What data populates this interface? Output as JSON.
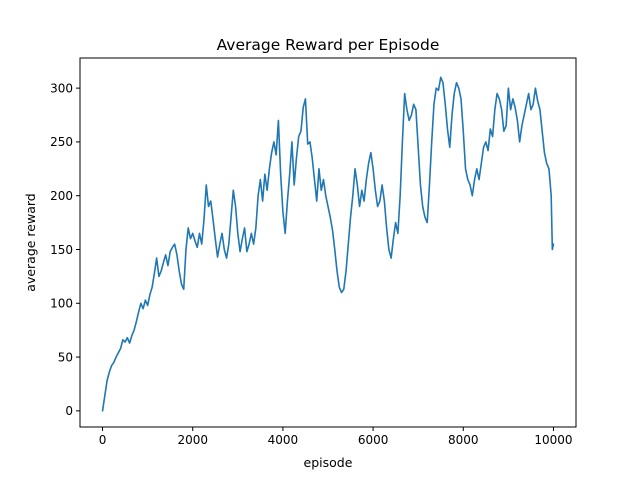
{
  "chart_data": {
    "type": "line",
    "title": "Average Reward per Episode",
    "xlabel": "episode",
    "ylabel": "average reward",
    "xlim": [
      -500,
      10500
    ],
    "ylim": [
      -15,
      328
    ],
    "xticks": [
      0,
      2000,
      4000,
      6000,
      8000,
      10000
    ],
    "yticks": [
      0,
      50,
      100,
      150,
      200,
      250,
      300
    ],
    "grid": false,
    "legend": "none",
    "line_color": "#1f77b4",
    "series": [
      {
        "values": [
          [
            0,
            0
          ],
          [
            50,
            14
          ],
          [
            100,
            28
          ],
          [
            150,
            36
          ],
          [
            200,
            42
          ],
          [
            250,
            45
          ],
          [
            300,
            50
          ],
          [
            400,
            58
          ],
          [
            450,
            66
          ],
          [
            500,
            64
          ],
          [
            550,
            68
          ],
          [
            600,
            63
          ],
          [
            650,
            70
          ],
          [
            700,
            75
          ],
          [
            750,
            83
          ],
          [
            800,
            92
          ],
          [
            850,
            100
          ],
          [
            900,
            95
          ],
          [
            950,
            103
          ],
          [
            1000,
            98
          ],
          [
            1050,
            108
          ],
          [
            1100,
            115
          ],
          [
            1150,
            128
          ],
          [
            1200,
            142
          ],
          [
            1250,
            125
          ],
          [
            1300,
            130
          ],
          [
            1350,
            138
          ],
          [
            1400,
            145
          ],
          [
            1450,
            135
          ],
          [
            1500,
            148
          ],
          [
            1550,
            152
          ],
          [
            1600,
            155
          ],
          [
            1650,
            145
          ],
          [
            1700,
            130
          ],
          [
            1750,
            118
          ],
          [
            1800,
            113
          ],
          [
            1850,
            150
          ],
          [
            1900,
            170
          ],
          [
            1950,
            160
          ],
          [
            2000,
            165
          ],
          [
            2050,
            158
          ],
          [
            2100,
            152
          ],
          [
            2150,
            165
          ],
          [
            2200,
            155
          ],
          [
            2250,
            178
          ],
          [
            2300,
            210
          ],
          [
            2350,
            190
          ],
          [
            2400,
            195
          ],
          [
            2450,
            178
          ],
          [
            2500,
            160
          ],
          [
            2550,
            143
          ],
          [
            2600,
            155
          ],
          [
            2650,
            165
          ],
          [
            2700,
            150
          ],
          [
            2750,
            142
          ],
          [
            2800,
            155
          ],
          [
            2850,
            180
          ],
          [
            2900,
            205
          ],
          [
            2950,
            190
          ],
          [
            3000,
            165
          ],
          [
            3050,
            148
          ],
          [
            3100,
            160
          ],
          [
            3150,
            170
          ],
          [
            3200,
            148
          ],
          [
            3250,
            155
          ],
          [
            3300,
            165
          ],
          [
            3350,
            155
          ],
          [
            3400,
            170
          ],
          [
            3450,
            200
          ],
          [
            3500,
            215
          ],
          [
            3550,
            195
          ],
          [
            3600,
            220
          ],
          [
            3650,
            205
          ],
          [
            3700,
            225
          ],
          [
            3750,
            240
          ],
          [
            3800,
            250
          ],
          [
            3850,
            238
          ],
          [
            3900,
            270
          ],
          [
            3950,
            220
          ],
          [
            4000,
            185
          ],
          [
            4050,
            165
          ],
          [
            4100,
            195
          ],
          [
            4150,
            220
          ],
          [
            4200,
            250
          ],
          [
            4250,
            210
          ],
          [
            4300,
            235
          ],
          [
            4350,
            255
          ],
          [
            4400,
            260
          ],
          [
            4450,
            282
          ],
          [
            4500,
            290
          ],
          [
            4550,
            248
          ],
          [
            4600,
            250
          ],
          [
            4650,
            235
          ],
          [
            4700,
            215
          ],
          [
            4750,
            195
          ],
          [
            4800,
            225
          ],
          [
            4850,
            205
          ],
          [
            4900,
            215
          ],
          [
            4950,
            200
          ],
          [
            5000,
            190
          ],
          [
            5050,
            180
          ],
          [
            5100,
            168
          ],
          [
            5150,
            150
          ],
          [
            5200,
            130
          ],
          [
            5250,
            115
          ],
          [
            5300,
            110
          ],
          [
            5350,
            113
          ],
          [
            5400,
            130
          ],
          [
            5450,
            155
          ],
          [
            5500,
            180
          ],
          [
            5550,
            200
          ],
          [
            5600,
            225
          ],
          [
            5650,
            210
          ],
          [
            5700,
            190
          ],
          [
            5750,
            205
          ],
          [
            5800,
            195
          ],
          [
            5850,
            215
          ],
          [
            5900,
            230
          ],
          [
            5950,
            240
          ],
          [
            6000,
            225
          ],
          [
            6050,
            205
          ],
          [
            6100,
            190
          ],
          [
            6150,
            195
          ],
          [
            6200,
            210
          ],
          [
            6250,
            195
          ],
          [
            6300,
            170
          ],
          [
            6350,
            150
          ],
          [
            6400,
            142
          ],
          [
            6450,
            160
          ],
          [
            6500,
            175
          ],
          [
            6550,
            165
          ],
          [
            6600,
            200
          ],
          [
            6650,
            250
          ],
          [
            6700,
            295
          ],
          [
            6750,
            280
          ],
          [
            6800,
            270
          ],
          [
            6850,
            275
          ],
          [
            6900,
            285
          ],
          [
            6950,
            280
          ],
          [
            7000,
            245
          ],
          [
            7050,
            210
          ],
          [
            7100,
            190
          ],
          [
            7150,
            180
          ],
          [
            7200,
            175
          ],
          [
            7250,
            210
          ],
          [
            7300,
            250
          ],
          [
            7350,
            285
          ],
          [
            7400,
            300
          ],
          [
            7450,
            298
          ],
          [
            7500,
            310
          ],
          [
            7550,
            305
          ],
          [
            7600,
            285
          ],
          [
            7650,
            262
          ],
          [
            7700,
            245
          ],
          [
            7750,
            275
          ],
          [
            7800,
            295
          ],
          [
            7850,
            305
          ],
          [
            7900,
            300
          ],
          [
            7950,
            290
          ],
          [
            8000,
            260
          ],
          [
            8050,
            225
          ],
          [
            8100,
            215
          ],
          [
            8150,
            210
          ],
          [
            8200,
            200
          ],
          [
            8250,
            215
          ],
          [
            8300,
            225
          ],
          [
            8350,
            215
          ],
          [
            8400,
            230
          ],
          [
            8450,
            245
          ],
          [
            8500,
            250
          ],
          [
            8550,
            242
          ],
          [
            8600,
            262
          ],
          [
            8650,
            255
          ],
          [
            8700,
            280
          ],
          [
            8750,
            295
          ],
          [
            8800,
            290
          ],
          [
            8850,
            280
          ],
          [
            8900,
            260
          ],
          [
            8950,
            265
          ],
          [
            9000,
            300
          ],
          [
            9050,
            280
          ],
          [
            9100,
            290
          ],
          [
            9150,
            282
          ],
          [
            9200,
            270
          ],
          [
            9250,
            250
          ],
          [
            9300,
            265
          ],
          [
            9350,
            275
          ],
          [
            9400,
            285
          ],
          [
            9450,
            295
          ],
          [
            9500,
            280
          ],
          [
            9550,
            285
          ],
          [
            9600,
            300
          ],
          [
            9650,
            288
          ],
          [
            9700,
            280
          ],
          [
            9750,
            260
          ],
          [
            9800,
            240
          ],
          [
            9850,
            230
          ],
          [
            9900,
            225
          ],
          [
            9950,
            200
          ],
          [
            9975,
            150
          ],
          [
            10000,
            155
          ]
        ]
      }
    ]
  }
}
